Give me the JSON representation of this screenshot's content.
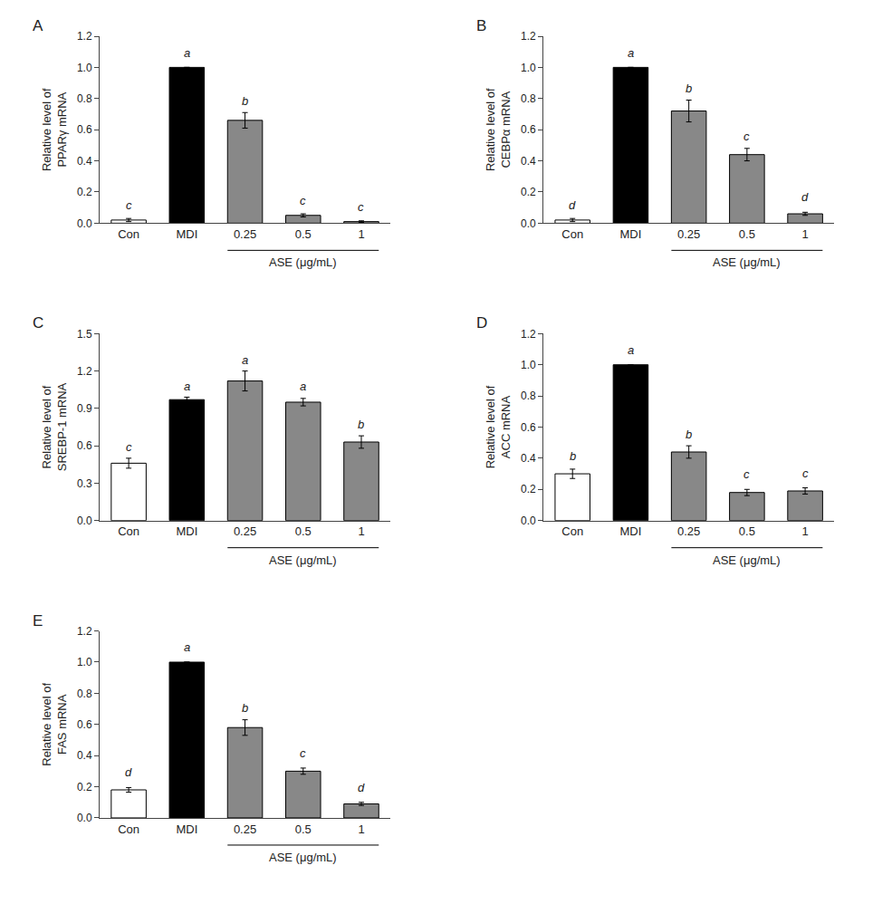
{
  "chart_data": [
    {
      "type": "bar",
      "title": "A",
      "ylabel": "Relative level of\nPPARγ mRNA",
      "xlabel": "ASE (μg/mL)",
      "categories": [
        "Con",
        "MDI",
        "0.25",
        "0.5",
        "1"
      ],
      "values": [
        0.02,
        1.0,
        0.66,
        0.05,
        0.01
      ],
      "errors": [
        0.01,
        0.0,
        0.05,
        0.01,
        0.005
      ],
      "colors": [
        "#ffffff",
        "#000000",
        "#888888",
        "#888888",
        "#888888"
      ],
      "annotations": [
        {
          "text": "c",
          "x": "Con",
          "y": 0.06
        },
        {
          "text": "a",
          "x": "MDI",
          "y": 1.04
        },
        {
          "text": "b",
          "x": "0.25",
          "y": 0.73
        },
        {
          "text": "c",
          "x": "0.5",
          "y": 0.09
        },
        {
          "text": "c",
          "x": "1",
          "y": 0.05
        }
      ],
      "ylim": [
        0,
        1.2
      ],
      "yticks": [
        {
          "value": 0,
          "label": "0.0"
        },
        0.2,
        0.4,
        0.6,
        0.8,
        {
          "value": 1,
          "label": "1.0"
        },
        1.2
      ],
      "grid": false
    },
    {
      "type": "bar",
      "title": "B",
      "ylabel": "Relative level of\nCEBPα mRNA",
      "xlabel": "ASE (μg/mL)",
      "categories": [
        "Con",
        "MDI",
        "0.25",
        "0.5",
        "1"
      ],
      "values": [
        0.02,
        1.0,
        0.72,
        0.44,
        0.06
      ],
      "errors": [
        0.01,
        0.0,
        0.07,
        0.04,
        0.01
      ],
      "colors": [
        "#ffffff",
        "#000000",
        "#888888",
        "#888888",
        "#888888"
      ],
      "annotations": [
        {
          "text": "d",
          "x": "Con",
          "y": 0.06
        },
        {
          "text": "a",
          "x": "MDI",
          "y": 1.04
        },
        {
          "text": "b",
          "x": "0.25",
          "y": 0.81
        },
        {
          "text": "c",
          "x": "0.5",
          "y": 0.5
        },
        {
          "text": "d",
          "x": "1",
          "y": 0.11
        }
      ],
      "ylim": [
        0,
        1.2
      ],
      "yticks": [
        {
          "value": 0,
          "label": "0.0"
        },
        0.2,
        0.4,
        0.6,
        0.8,
        {
          "value": 1,
          "label": "1.0"
        },
        1.2
      ],
      "grid": false
    },
    {
      "type": "bar",
      "title": "C",
      "ylabel": "Relative level of\nSREBP-1 mRNA",
      "xlabel": "ASE (μg/mL)",
      "categories": [
        "Con",
        "MDI",
        "0.25",
        "0.5",
        "1"
      ],
      "values": [
        0.46,
        0.97,
        1.12,
        0.95,
        0.63
      ],
      "errors": [
        0.04,
        0.02,
        0.08,
        0.03,
        0.05
      ],
      "colors": [
        "#ffffff",
        "#000000",
        "#888888",
        "#888888",
        "#888888"
      ],
      "annotations": [
        {
          "text": "c",
          "x": "Con",
          "y": 0.52
        },
        {
          "text": "a",
          "x": "MDI",
          "y": 1.01
        },
        {
          "text": "a",
          "x": "0.25",
          "y": 1.22
        },
        {
          "text": "a",
          "x": "0.5",
          "y": 1.01
        },
        {
          "text": "b",
          "x": "1",
          "y": 0.7
        }
      ],
      "ylim": [
        0,
        1.5
      ],
      "yticks": [
        {
          "value": 0,
          "label": "0.0"
        },
        0.3,
        0.6,
        0.9,
        1.2,
        1.5
      ],
      "grid": false
    },
    {
      "type": "bar",
      "title": "D",
      "ylabel": "Relative level of\nACC mRNA",
      "xlabel": "ASE (μg/mL)",
      "categories": [
        "Con",
        "MDI",
        "0.25",
        "0.5",
        "1"
      ],
      "values": [
        0.3,
        1.0,
        0.44,
        0.18,
        0.19
      ],
      "errors": [
        0.03,
        0.0,
        0.04,
        0.02,
        0.02
      ],
      "colors": [
        "#ffffff",
        "#000000",
        "#888888",
        "#888888",
        "#888888"
      ],
      "annotations": [
        {
          "text": "b",
          "x": "Con",
          "y": 0.36
        },
        {
          "text": "a",
          "x": "MDI",
          "y": 1.04
        },
        {
          "text": "b",
          "x": "0.25",
          "y": 0.5
        },
        {
          "text": "c",
          "x": "0.5",
          "y": 0.24
        },
        {
          "text": "c",
          "x": "1",
          "y": 0.25
        }
      ],
      "ylim": [
        0,
        1.2
      ],
      "yticks": [
        {
          "value": 0,
          "label": "0.0"
        },
        0.2,
        0.4,
        0.6,
        0.8,
        {
          "value": 1,
          "label": "1.0"
        },
        1.2
      ],
      "grid": false
    },
    {
      "type": "bar",
      "title": "E",
      "ylabel": "Relative level of\nFAS mRNA",
      "xlabel": "ASE (μg/mL)",
      "categories": [
        "Con",
        "MDI",
        "0.25",
        "0.5",
        "1"
      ],
      "values": [
        0.18,
        1.0,
        0.58,
        0.3,
        0.09
      ],
      "errors": [
        0.015,
        0.0,
        0.05,
        0.02,
        0.01
      ],
      "colors": [
        "#ffffff",
        "#000000",
        "#888888",
        "#888888",
        "#888888"
      ],
      "annotations": [
        {
          "text": "d",
          "x": "Con",
          "y": 0.24
        },
        {
          "text": "a",
          "x": "MDI",
          "y": 1.04
        },
        {
          "text": "b",
          "x": "0.25",
          "y": 0.65
        },
        {
          "text": "c",
          "x": "0.5",
          "y": 0.36
        },
        {
          "text": "d",
          "x": "1",
          "y": 0.14
        }
      ],
      "ylim": [
        0,
        1.2
      ],
      "yticks": [
        {
          "value": 0,
          "label": "0.0"
        },
        0.2,
        0.4,
        0.6,
        0.8,
        {
          "value": 1,
          "label": "1.0"
        },
        1.2
      ],
      "grid": false
    }
  ]
}
